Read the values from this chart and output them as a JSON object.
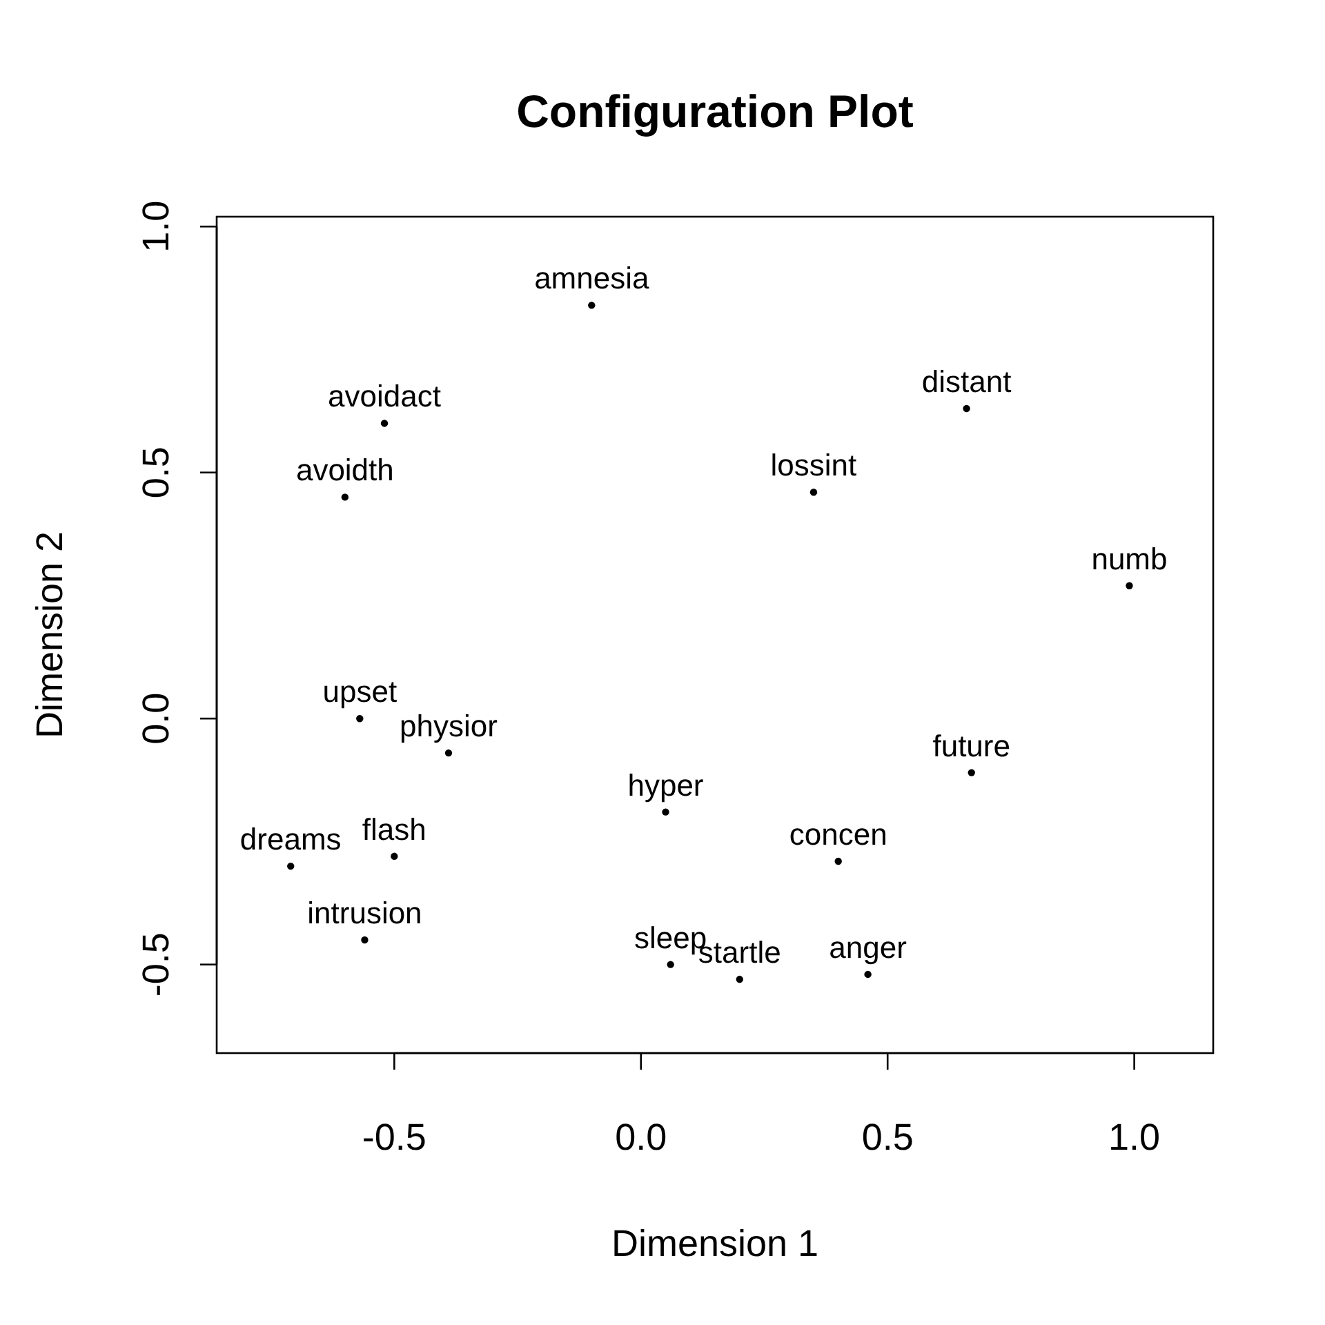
{
  "chart_data": {
    "type": "scatter",
    "title": "Configuration Plot",
    "xlabel": "Dimension 1",
    "ylabel": "Dimension 2",
    "x": [
      -0.1,
      -0.52,
      -0.6,
      0.66,
      0.35,
      0.99,
      -0.57,
      -0.39,
      0.67,
      0.05,
      0.4,
      -0.71,
      -0.5,
      -0.56,
      0.06,
      0.2,
      0.46
    ],
    "values": [
      0.84,
      0.6,
      0.45,
      0.63,
      0.46,
      0.27,
      0.0,
      -0.07,
      -0.11,
      -0.19,
      -0.29,
      -0.3,
      -0.28,
      -0.45,
      -0.5,
      -0.53,
      -0.52
    ],
    "color": "#000000",
    "marker": "circle",
    "grid": false,
    "xlim": [
      -0.86,
      1.16
    ],
    "ylim": [
      -0.68,
      1.02
    ],
    "xticks": [
      -0.5,
      {
        "value": 0,
        "label": "0.0"
      },
      0.5,
      {
        "value": 1,
        "label": "1.0"
      }
    ],
    "yticks": [
      -0.5,
      {
        "value": 0,
        "label": "0.0"
      },
      0.5,
      {
        "value": 1,
        "label": "1.0"
      }
    ],
    "annotations": [
      {
        "text": "amnesia",
        "x": -0.1,
        "y": 0.84
      },
      {
        "text": "avoidact",
        "x": -0.52,
        "y": 0.6
      },
      {
        "text": "avoidth",
        "x": -0.6,
        "y": 0.45
      },
      {
        "text": "distant",
        "x": 0.66,
        "y": 0.63
      },
      {
        "text": "lossint",
        "x": 0.35,
        "y": 0.46
      },
      {
        "text": "numb",
        "x": 0.99,
        "y": 0.27
      },
      {
        "text": "upset",
        "x": -0.57,
        "y": 0.0
      },
      {
        "text": "physior",
        "x": -0.39,
        "y": -0.07
      },
      {
        "text": "future",
        "x": 0.67,
        "y": -0.11
      },
      {
        "text": "hyper",
        "x": 0.05,
        "y": -0.19
      },
      {
        "text": "concen",
        "x": 0.4,
        "y": -0.29
      },
      {
        "text": "dreams",
        "x": -0.71,
        "y": -0.3
      },
      {
        "text": "flash",
        "x": -0.5,
        "y": -0.28
      },
      {
        "text": "intrusion",
        "x": -0.56,
        "y": -0.45
      },
      {
        "text": "sleep",
        "x": 0.06,
        "y": -0.5
      },
      {
        "text": "startle",
        "x": 0.2,
        "y": -0.53
      },
      {
        "text": "anger",
        "x": 0.46,
        "y": -0.52
      }
    ]
  }
}
